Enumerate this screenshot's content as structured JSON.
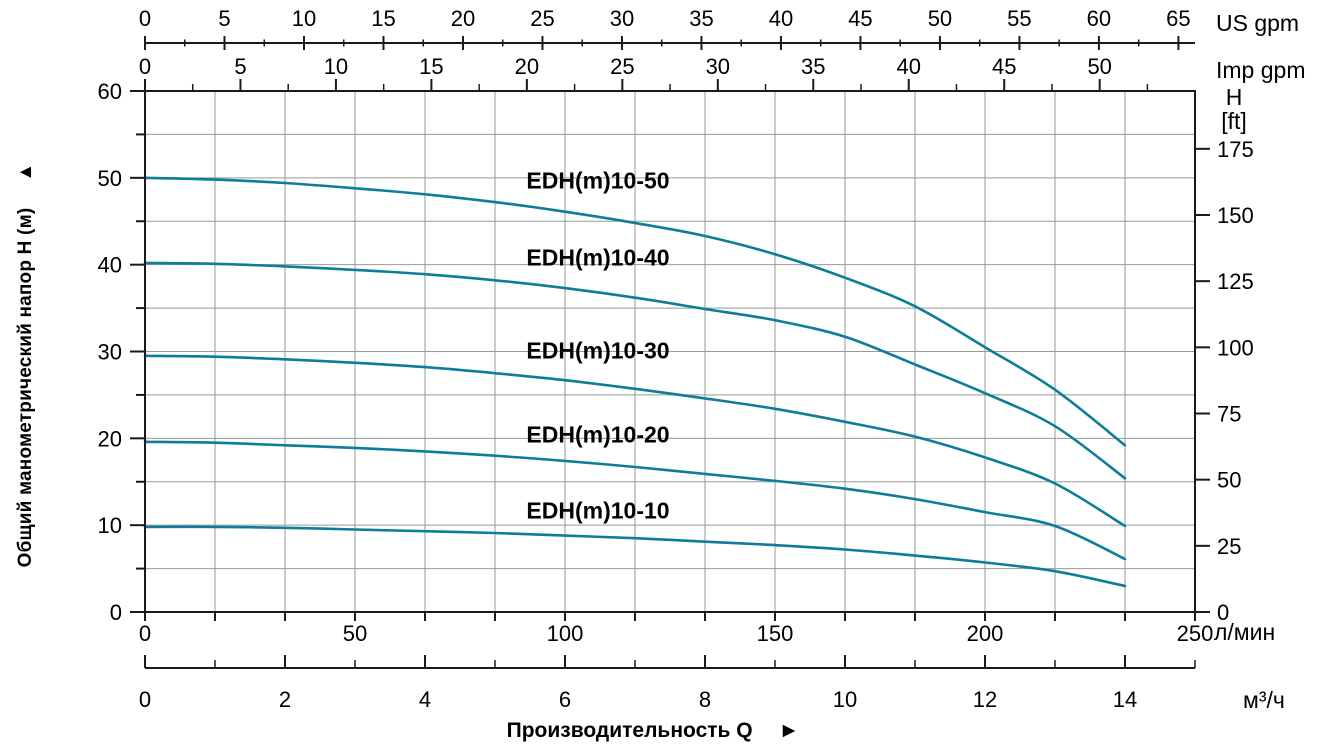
{
  "chart_data": {
    "type": "line",
    "xlabel": "Производительность Q",
    "curve_color": "#0d7d99",
    "grid_color": "#999999",
    "frame_color": "#1a1a1a",
    "axes": {
      "top_us": {
        "label": "US gpm",
        "ticks": [
          0,
          5,
          10,
          15,
          20,
          25,
          30,
          35,
          40,
          45,
          50,
          55,
          60,
          65
        ],
        "minor_step": 2.5,
        "lpm_per_unit": 3.7854
      },
      "top_imp": {
        "label": "Imp gpm",
        "ticks": [
          0,
          5,
          10,
          15,
          20,
          25,
          30,
          35,
          40,
          45,
          50
        ],
        "minor_step": 2.5,
        "lpm_per_unit": 4.5461
      },
      "left": {
        "label": "Общий манометрический напор H (м)",
        "ticks": [
          0,
          10,
          20,
          30,
          40,
          50,
          60
        ],
        "minor_step": 5,
        "range": [
          0,
          60
        ]
      },
      "right": {
        "label_line1": "H",
        "label_line2": "[ft]",
        "ticks": [
          0,
          25,
          50,
          75,
          100,
          125,
          150,
          175
        ],
        "m_per_ft": 0.3048
      },
      "bottom_lpm": {
        "label": "л/мин",
        "ticks": [
          0,
          50,
          100,
          150,
          200,
          250
        ],
        "range": [
          0,
          250
        ]
      },
      "bottom_m3h": {
        "label": "м³/ч",
        "ticks": [
          0,
          2,
          4,
          6,
          8,
          10,
          12,
          14
        ],
        "minor_step": 1,
        "range": [
          0,
          15
        ]
      }
    },
    "series": [
      {
        "name": "EDH(m)10-50",
        "points": [
          [
            0,
            50
          ],
          [
            1,
            49.8
          ],
          [
            2,
            49.4
          ],
          [
            3,
            48.8
          ],
          [
            4,
            48.1
          ],
          [
            5,
            47.2
          ],
          [
            6,
            46.1
          ],
          [
            7,
            44.8
          ],
          [
            8,
            43.3
          ],
          [
            9,
            41.2
          ],
          [
            10,
            38.5
          ],
          [
            11,
            35.2
          ],
          [
            12,
            30.5
          ],
          [
            13,
            25.6
          ],
          [
            14,
            19.2
          ]
        ]
      },
      {
        "name": "EDH(m)10-40",
        "points": [
          [
            0,
            40.2
          ],
          [
            1,
            40.1
          ],
          [
            2,
            39.8
          ],
          [
            3,
            39.4
          ],
          [
            4,
            38.9
          ],
          [
            5,
            38.2
          ],
          [
            6,
            37.3
          ],
          [
            7,
            36.2
          ],
          [
            8,
            34.9
          ],
          [
            9,
            33.6
          ],
          [
            10,
            31.7
          ],
          [
            11,
            28.5
          ],
          [
            12,
            25.2
          ],
          [
            13,
            21.4
          ],
          [
            14,
            15.4
          ]
        ]
      },
      {
        "name": "EDH(m)10-30",
        "points": [
          [
            0,
            29.5
          ],
          [
            1,
            29.4
          ],
          [
            2,
            29.1
          ],
          [
            3,
            28.7
          ],
          [
            4,
            28.2
          ],
          [
            5,
            27.5
          ],
          [
            6,
            26.7
          ],
          [
            7,
            25.7
          ],
          [
            8,
            24.6
          ],
          [
            9,
            23.4
          ],
          [
            10,
            21.9
          ],
          [
            11,
            20.2
          ],
          [
            12,
            17.8
          ],
          [
            13,
            14.8
          ],
          [
            14,
            9.9
          ]
        ]
      },
      {
        "name": "EDH(m)10-20",
        "points": [
          [
            0,
            19.6
          ],
          [
            1,
            19.5
          ],
          [
            2,
            19.2
          ],
          [
            3,
            18.9
          ],
          [
            4,
            18.5
          ],
          [
            5,
            18.0
          ],
          [
            6,
            17.4
          ],
          [
            7,
            16.7
          ],
          [
            8,
            15.9
          ],
          [
            9,
            15.1
          ],
          [
            10,
            14.2
          ],
          [
            11,
            13.0
          ],
          [
            12,
            11.5
          ],
          [
            13,
            9.9
          ],
          [
            14,
            6.1
          ]
        ]
      },
      {
        "name": "EDH(m)10-10",
        "points": [
          [
            0,
            9.8
          ],
          [
            1,
            9.8
          ],
          [
            2,
            9.7
          ],
          [
            3,
            9.5
          ],
          [
            4,
            9.3
          ],
          [
            5,
            9.1
          ],
          [
            6,
            8.8
          ],
          [
            7,
            8.5
          ],
          [
            8,
            8.1
          ],
          [
            9,
            7.7
          ],
          [
            10,
            7.2
          ],
          [
            11,
            6.5
          ],
          [
            12,
            5.7
          ],
          [
            13,
            4.7
          ],
          [
            14,
            3.0
          ]
        ]
      }
    ]
  },
  "icons": {
    "up_arrow": "▲",
    "right_arrow": "►"
  }
}
